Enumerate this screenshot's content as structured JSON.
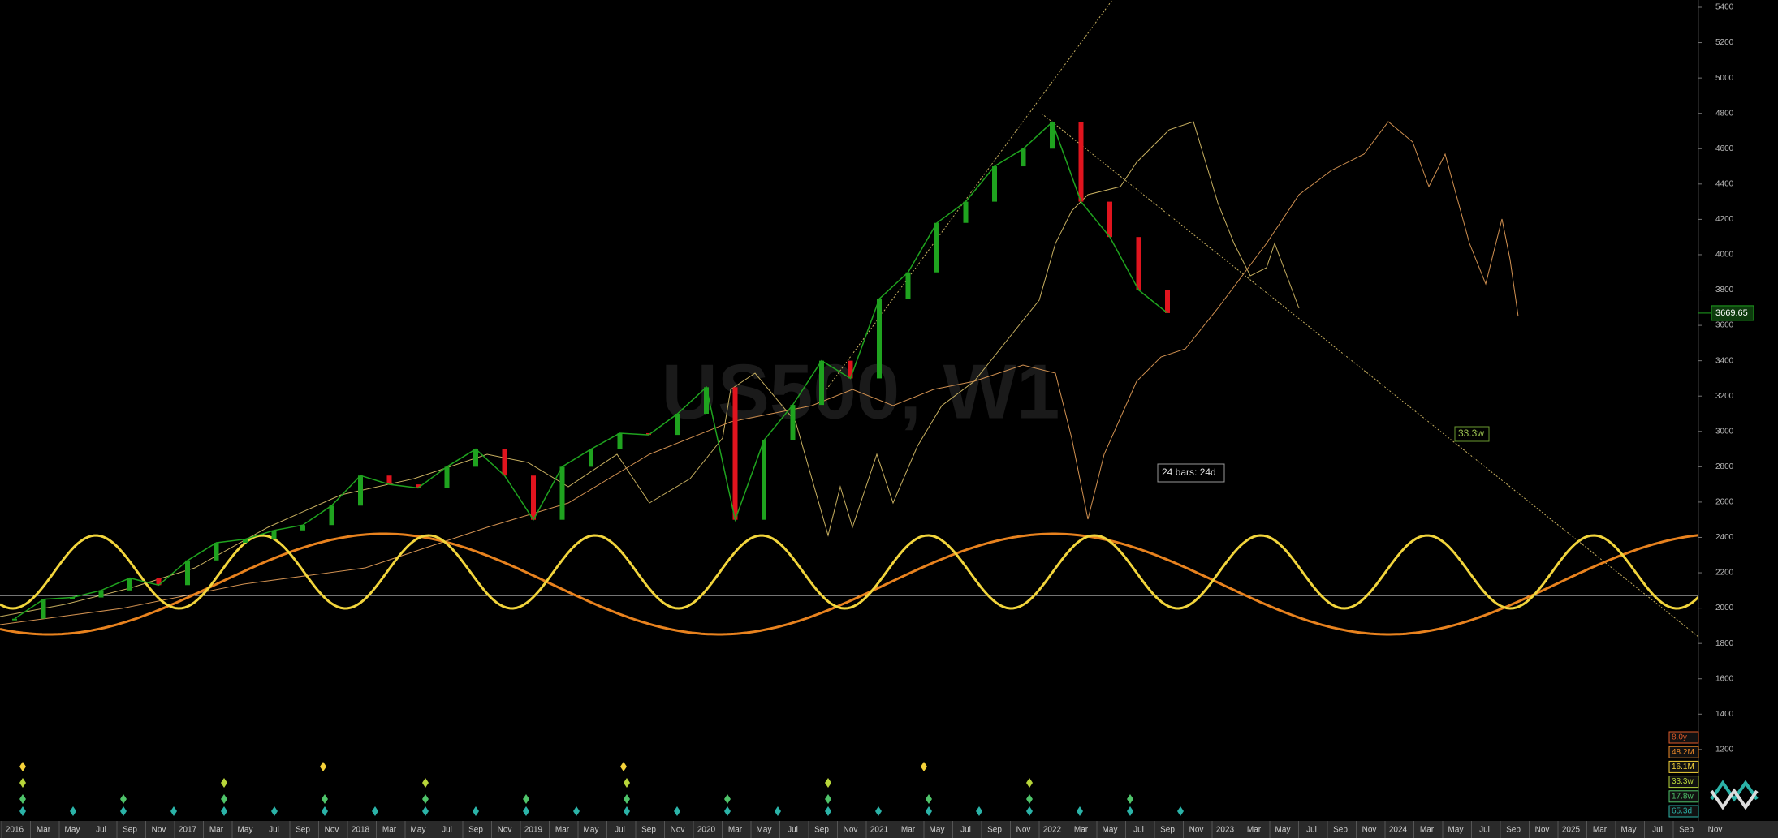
{
  "chart_data": {
    "type": "line",
    "title": "US500, W1",
    "categories": [
      "2016",
      "Mar",
      "May",
      "Jul",
      "Sep",
      "Nov",
      "2017",
      "Mar",
      "May",
      "Jul",
      "Sep",
      "Nov",
      "2018",
      "Mar",
      "May",
      "Jul",
      "Sep",
      "Nov",
      "2019",
      "Mar",
      "May",
      "Jul",
      "Sep",
      "Nov",
      "2020",
      "Mar",
      "May",
      "Jul",
      "Sep",
      "Nov",
      "2021",
      "Mar",
      "May",
      "Jul",
      "Sep",
      "Nov",
      "2022",
      "Mar",
      "May",
      "Jul",
      "Sep",
      "Nov",
      "2023",
      "Mar",
      "May",
      "Jul",
      "Sep",
      "Nov",
      "2024",
      "Mar",
      "May",
      "Jul",
      "Sep",
      "Nov",
      "2025",
      "Mar",
      "May",
      "Jul",
      "Sep",
      "Nov"
    ],
    "series": [
      {
        "name": "US500",
        "color": "#1fa31f",
        "down_color": "#e0141e",
        "values": [
          1940,
          2050,
          2060,
          2100,
          2170,
          2130,
          2270,
          2370,
          2390,
          2440,
          2470,
          2580,
          2750,
          2700,
          2680,
          2800,
          2900,
          2750,
          2500,
          2800,
          2900,
          2990,
          2980,
          3100,
          3250,
          2500,
          2950,
          3150,
          3400,
          3300,
          3750,
          3900,
          4180,
          4300,
          4500,
          4600,
          4750,
          4300,
          4100,
          3800,
          3669.65,
          null,
          null,
          null,
          null,
          null,
          null,
          null,
          null,
          null,
          null,
          null,
          null,
          null,
          null,
          null,
          null,
          null,
          null,
          null
        ]
      }
    ],
    "ylim": [
      800,
      5400
    ],
    "yticks": [
      1200,
      1400,
      1600,
      1800,
      2000,
      2200,
      2400,
      2600,
      2800,
      3000,
      3200,
      3400,
      3600,
      3800,
      4000,
      4200,
      4400,
      4600,
      4800,
      5000,
      5200,
      5400
    ],
    "annotations": [
      "33.3w",
      "24 bars: 24d"
    ],
    "cycle_labels": [
      {
        "text": "8.0y",
        "color": "#e05a2a"
      },
      {
        "text": "48.2M",
        "color": "#f08a28"
      },
      {
        "text": "16.1M",
        "color": "#f5d23a"
      },
      {
        "text": "33.3w",
        "color": "#b8d63a"
      },
      {
        "text": "17.8w",
        "color": "#4fc46a"
      },
      {
        "text": "65.3d",
        "color": "#2bb3a8"
      }
    ]
  }
}
